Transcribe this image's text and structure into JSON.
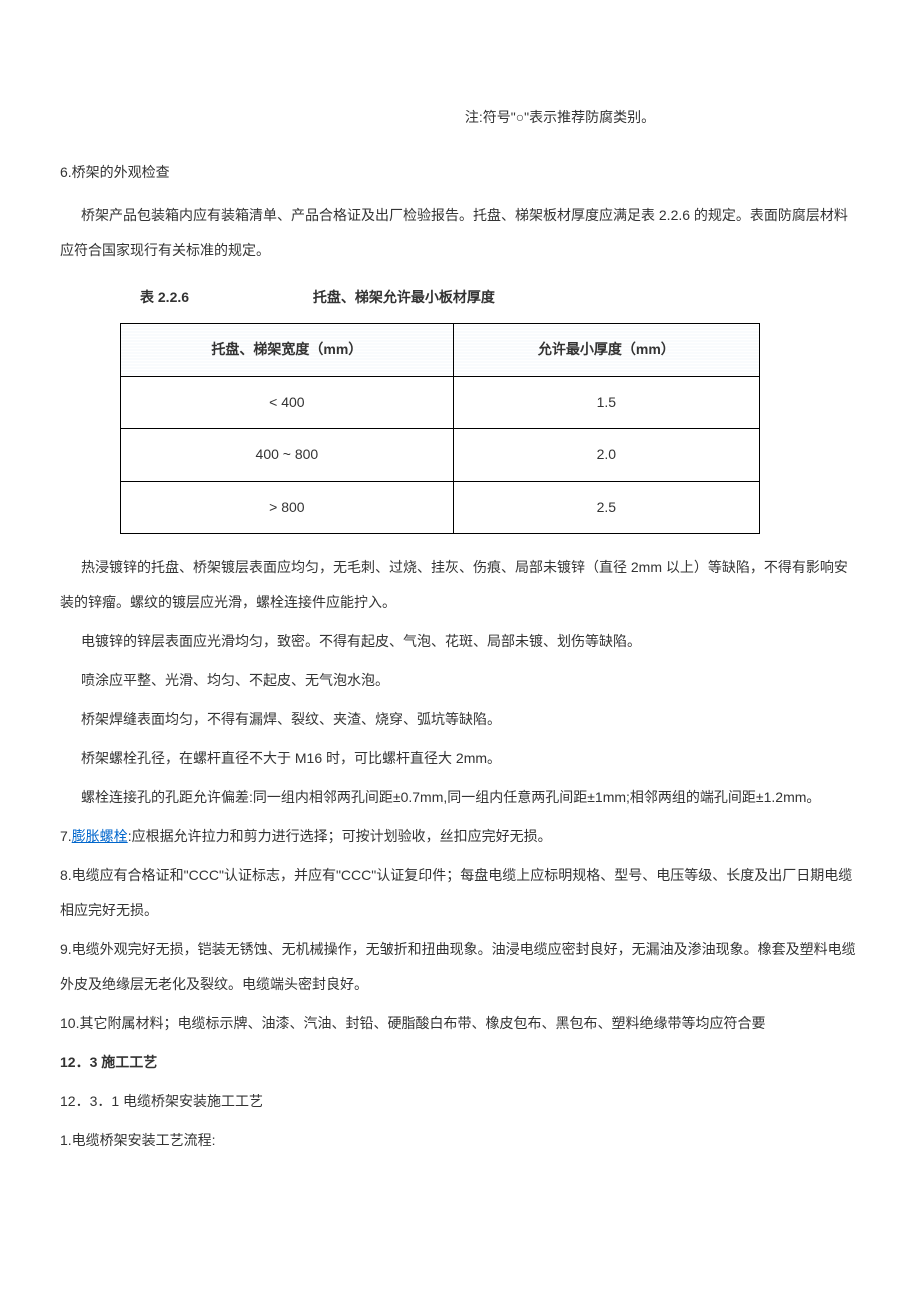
{
  "note": "注:符号\"○\"表示推荐防腐类别。",
  "s6": {
    "title": "6.桥架的外观检查",
    "p1": "桥架产品包装箱内应有装箱清单、产品合格证及出厂检验报告。托盘、梯架板材厚度应满足表 2.2.6 的规定。表面防腐层材料应符合国家现行有关标准的规定。"
  },
  "table": {
    "title_label": "表 2.2.6",
    "title_desc": "托盘、梯架允许最小板材厚度",
    "header_col1": "托盘、梯架宽度（mm）",
    "header_col2": "允许最小厚度（mm）",
    "rows": [
      {
        "c1": "< 400",
        "c2": "1.5"
      },
      {
        "c1": "400 ~ 800",
        "c2": "2.0"
      },
      {
        "c1": "> 800",
        "c2": "2.5"
      }
    ]
  },
  "after_table": {
    "p1": "热浸镀锌的托盘、桥架镀层表面应均匀，无毛刺、过烧、挂灰、伤痕、局部未镀锌（直径 2mm 以上）等缺陷，不得有影响安装的锌瘤。螺纹的镀层应光滑，螺栓连接件应能拧入。",
    "p2": "电镀锌的锌层表面应光滑均匀，致密。不得有起皮、气泡、花斑、局部未镀、划伤等缺陷。",
    "p3": "喷涂应平整、光滑、均匀、不起皮、无气泡水泡。",
    "p4": "桥架焊缝表面均匀，不得有漏焊、裂纹、夹渣、烧穿、弧坑等缺陷。",
    "p5": "桥架螺栓孔径，在螺杆直径不大于 M16 时，可比螺杆直径大 2mm。",
    "p6": "螺栓连接孔的孔距允许偏差:同一组内相邻两孔间距±0.7mm,同一组内任意两孔间距±1mm;相邻两组的端孔间距±1.2mm。"
  },
  "s7": {
    "prefix": "7.",
    "link": "膨胀螺栓",
    "rest": ":应根据允许拉力和剪力进行选择；可按计划验收，丝扣应完好无损。"
  },
  "s8": "8.电缆应有合格证和\"CCC\"认证标志，并应有\"CCC\"认证复印件；每盘电缆上应标明规格、型号、电压等级、长度及出厂日期电缆相应完好无损。",
  "s9": "9.电缆外观完好无损，铠装无锈蚀、无机械操作，无皱折和扭曲现象。油浸电缆应密封良好，无漏油及渗油现象。橡套及塑料电缆外皮及绝缘层无老化及裂纹。电缆端头密封良好。",
  "s10": "10.其它附属材料；电缆标示牌、油漆、汽油、封铅、硬脂酸白布带、橡皮包布、黑包布、塑料绝缘带等均应符合要",
  "s12_3": "12．3  施工工艺",
  "s12_3_1": "12．3．1   电缆桥架安装施工工艺",
  "s12_3_1_1": "1.电缆桥架安装工艺流程:"
}
